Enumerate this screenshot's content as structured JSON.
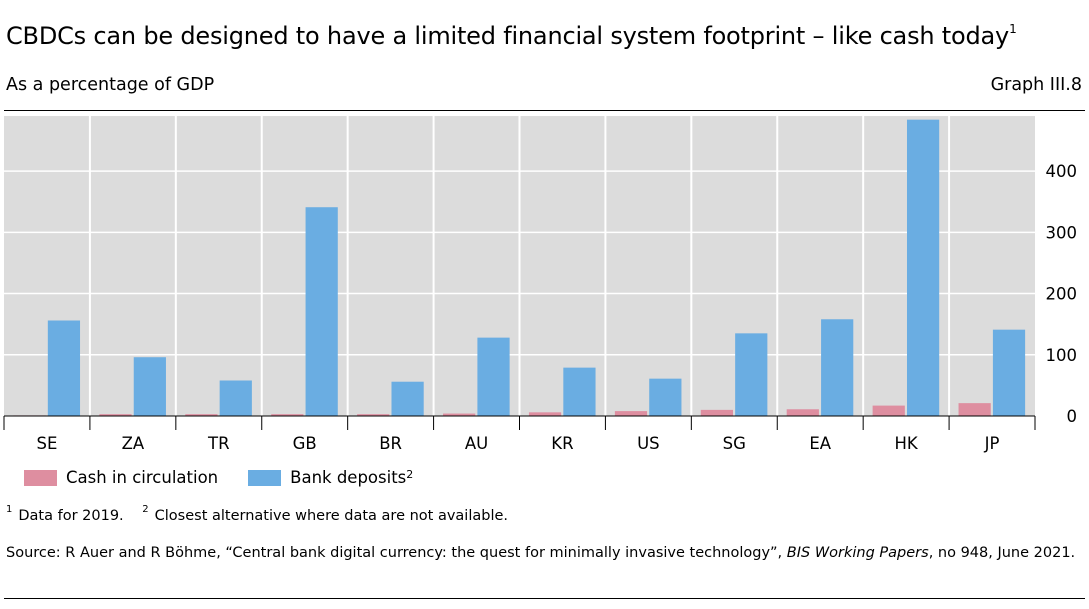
{
  "header": {
    "title": "CBDCs can be designed to have a limited financial system footprint – like cash today",
    "title_note": "1",
    "subtitle": "As a percentage of GDP",
    "graph_number": "Graph III.8"
  },
  "colors": {
    "cash": "#de8ea0",
    "deposits": "#6aade2",
    "plot_background": "#dcdcdc",
    "grid": "#ffffff"
  },
  "legend": {
    "cash_label": "Cash in circulation",
    "deposits_label": "Bank deposits",
    "deposits_note": "2"
  },
  "footnotes": {
    "n1_mark": "1",
    "n1_text": "Data for 2019.",
    "n2_mark": "2",
    "n2_text": "Closest alternative where data are not available."
  },
  "source": {
    "prefix": "Source: R Auer and R Böhme, “Central bank digital currency: the quest for minimally invasive technology”, ",
    "publication": "BIS Working Papers",
    "suffix": ", no 948, June 2021."
  },
  "chart_data": {
    "type": "bar",
    "categories": [
      "SE",
      "ZA",
      "TR",
      "GB",
      "BR",
      "AU",
      "KR",
      "US",
      "SG",
      "EA",
      "HK",
      "JP"
    ],
    "series": [
      {
        "name": "Cash in circulation",
        "color": "#de8ea0",
        "values": [
          1,
          3,
          3,
          3,
          3,
          4,
          6,
          8,
          10,
          11,
          17,
          21
        ]
      },
      {
        "name": "Bank deposits",
        "color": "#6aade2",
        "values": [
          156,
          96,
          58,
          341,
          56,
          128,
          79,
          61,
          135,
          158,
          484,
          141
        ]
      }
    ],
    "ylim": [
      0,
      490
    ],
    "yticks": [
      0,
      100,
      200,
      300,
      400
    ],
    "y_axis_position": "right",
    "grid": true,
    "legend_position": "bottom-left"
  }
}
